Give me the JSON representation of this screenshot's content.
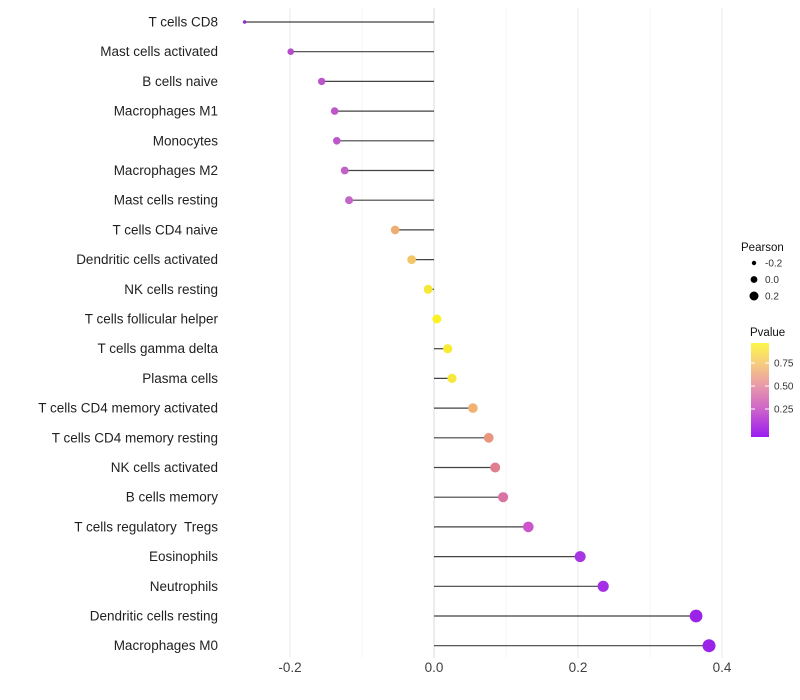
{
  "chart_data": {
    "type": "lollipop",
    "title": "",
    "xlabel": "",
    "ylabel": "",
    "grid": "vertical-only",
    "axis": {
      "xlim": [
        -0.29,
        0.42
      ],
      "tick_values": [
        -0.2,
        0.0,
        0.2,
        0.4
      ],
      "tick_labels": [
        "-0.2",
        "0.0",
        "0.2",
        "0.4"
      ],
      "minor_tick_values": [
        -0.1,
        0.1,
        0.3
      ],
      "zero_line_color": "#d9d9d9",
      "major_grid_color": "#e8e8e8",
      "minor_grid_color": "#f4f4f4",
      "stem_color": "#2e2e2e"
    },
    "rows": [
      {
        "label": "T cells CD8",
        "pearson": -0.263,
        "pvalue_est": 0.08,
        "color": "#8c2bd9",
        "r": 1.8
      },
      {
        "label": "Mast cells activated",
        "pearson": -0.199,
        "pvalue_est": 0.25,
        "color": "#b44ec8",
        "r": 3.3
      },
      {
        "label": "B cells naive",
        "pearson": -0.156,
        "pvalue_est": 0.28,
        "color": "#bb55cb",
        "r": 3.7
      },
      {
        "label": "Macrophages M1",
        "pearson": -0.138,
        "pvalue_est": 0.3,
        "color": "#be58ca",
        "r": 3.8
      },
      {
        "label": "Monocytes",
        "pearson": -0.135,
        "pvalue_est": 0.3,
        "color": "#be58ca",
        "r": 3.8
      },
      {
        "label": "Macrophages M2",
        "pearson": -0.124,
        "pvalue_est": 0.32,
        "color": "#c160c9",
        "r": 3.9
      },
      {
        "label": "Mast cells resting",
        "pearson": -0.118,
        "pvalue_est": 0.33,
        "color": "#c466c8",
        "r": 4.0
      },
      {
        "label": "T cells CD4 naive",
        "pearson": -0.054,
        "pvalue_est": 0.63,
        "color": "#efad72",
        "r": 4.3
      },
      {
        "label": "Dendritic cells activated",
        "pearson": -0.031,
        "pvalue_est": 0.72,
        "color": "#f2c566",
        "r": 4.4
      },
      {
        "label": "NK cells resting",
        "pearson": -0.008,
        "pvalue_est": 0.86,
        "color": "#f6e73b",
        "r": 4.5
      },
      {
        "label": "T cells follicular helper",
        "pearson": 0.004,
        "pvalue_est": 0.9,
        "color": "#faf223",
        "r": 4.5
      },
      {
        "label": "T cells gamma delta",
        "pearson": 0.019,
        "pvalue_est": 0.82,
        "color": "#f8ec32",
        "r": 4.6
      },
      {
        "label": "Plasma cells",
        "pearson": 0.025,
        "pvalue_est": 0.8,
        "color": "#f7e73a",
        "r": 4.6
      },
      {
        "label": "T cells CD4 memory activated",
        "pearson": 0.054,
        "pvalue_est": 0.62,
        "color": "#f1b170",
        "r": 4.8
      },
      {
        "label": "T cells CD4 memory resting",
        "pearson": 0.076,
        "pvalue_est": 0.5,
        "color": "#e8967e",
        "r": 4.9
      },
      {
        "label": "NK cells activated",
        "pearson": 0.085,
        "pvalue_est": 0.45,
        "color": "#df7e8c",
        "r": 5.0
      },
      {
        "label": "B cells memory",
        "pearson": 0.096,
        "pvalue_est": 0.4,
        "color": "#d873a4",
        "r": 5.1
      },
      {
        "label": "T cells regulatory  Tregs",
        "pearson": 0.131,
        "pvalue_est": 0.27,
        "color": "#cc55cc",
        "r": 5.3
      },
      {
        "label": "Eosinophils",
        "pearson": 0.203,
        "pvalue_est": 0.12,
        "color": "#a936e3",
        "r": 5.5
      },
      {
        "label": "Neutrophils",
        "pearson": 0.235,
        "pvalue_est": 0.1,
        "color": "#a52fe5",
        "r": 5.6
      },
      {
        "label": "Dendritic cells resting",
        "pearson": 0.364,
        "pvalue_est": 0.03,
        "color": "#9b23e8",
        "r": 6.4
      },
      {
        "label": "Macrophages M0",
        "pearson": 0.382,
        "pvalue_est": 0.03,
        "color": "#9b23e8",
        "r": 6.5
      }
    ],
    "legend": {
      "position": "right",
      "size": {
        "title": "Pearson",
        "dot_color": "#000000",
        "entries": [
          {
            "label": "-0.2",
            "r": 2.2
          },
          {
            "label": "0.0",
            "r": 3.4
          },
          {
            "label": "0.2",
            "r": 4.5
          }
        ]
      },
      "color": {
        "title": "Pvalue",
        "ticks": [
          "0.75",
          "0.50",
          "0.25"
        ],
        "gradient": [
          {
            "offset": 0.0,
            "color": "#fbf64b"
          },
          {
            "offset": 0.21,
            "color": "#f7ce7d"
          },
          {
            "offset": 0.46,
            "color": "#e898aa"
          },
          {
            "offset": 0.7,
            "color": "#ce65ca"
          },
          {
            "offset": 1.0,
            "color": "#9b1bf1"
          }
        ]
      }
    }
  }
}
